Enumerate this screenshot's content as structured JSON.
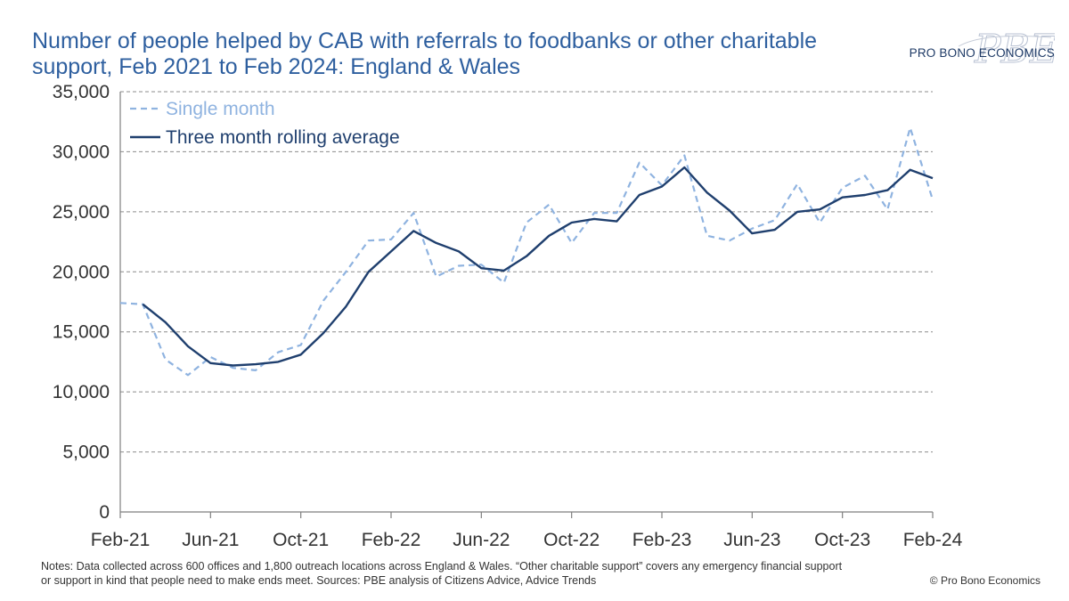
{
  "title": "Number of people helped by CAB with referrals to foodbanks or other charitable support, Feb 2021 to Feb 2024: England & Wales",
  "logo": {
    "text": "PRO BONO ECONOMICS",
    "mark": "PBE"
  },
  "notes": "Notes: Data collected across 600 offices and 1,800 outreach locations across England & Wales. “Other charitable support” covers any emergency financial support or support in kind that people need to make ends meet. Sources: PBE analysis of Citizens Advice, Advice Trends",
  "copyright": "© Pro Bono Economics",
  "colors": {
    "title": "#2e5f9f",
    "single": "#8fb3e0",
    "rolling": "#1f3f6e",
    "grid": "#8c8c8c",
    "axis": "#7f7f7f"
  },
  "chart_data": {
    "type": "line",
    "title": "Number of people helped by CAB with referrals to foodbanks or other charitable support, Feb 2021 to Feb 2024: England & Wales",
    "xlabel": "",
    "ylabel": "",
    "ylim": [
      0,
      35000
    ],
    "yticks": [
      0,
      5000,
      10000,
      15000,
      20000,
      25000,
      30000,
      35000
    ],
    "ytick_labels": [
      "0",
      "5,000",
      "10,000",
      "15,000",
      "20,000",
      "25,000",
      "30,000",
      "35,000"
    ],
    "grid": "horizontal dashed",
    "legend_position": "top-left",
    "x": [
      "Feb-21",
      "Mar-21",
      "Apr-21",
      "May-21",
      "Jun-21",
      "Jul-21",
      "Aug-21",
      "Sep-21",
      "Oct-21",
      "Nov-21",
      "Dec-21",
      "Jan-22",
      "Feb-22",
      "Mar-22",
      "Apr-22",
      "May-22",
      "Jun-22",
      "Jul-22",
      "Aug-22",
      "Sep-22",
      "Oct-22",
      "Nov-22",
      "Dec-22",
      "Jan-23",
      "Feb-23",
      "Mar-23",
      "Apr-23",
      "May-23",
      "Jun-23",
      "Jul-23",
      "Aug-23",
      "Sep-23",
      "Oct-23",
      "Nov-23",
      "Dec-23",
      "Jan-24",
      "Feb-24"
    ],
    "xtick_labels": [
      "Feb-21",
      "Jun-21",
      "Oct-21",
      "Feb-22",
      "Jun-22",
      "Oct-22",
      "Feb-23",
      "Jun-23",
      "Oct-23",
      "Feb-24"
    ],
    "series": [
      {
        "name": "Single month",
        "style": "dashed",
        "values": [
          17400,
          17300,
          12700,
          11400,
          12900,
          12000,
          11800,
          13300,
          13900,
          17600,
          20000,
          22600,
          22700,
          24900,
          19600,
          20500,
          20600,
          19100,
          24100,
          25600,
          22400,
          24900,
          24900,
          29100,
          27200,
          29700,
          23000,
          22600,
          23600,
          24300,
          27300,
          24100,
          27000,
          28000,
          25200,
          32000,
          26000
        ]
      },
      {
        "name": "Three month rolling average",
        "style": "solid",
        "values": [
          null,
          17300,
          15800,
          13800,
          12400,
          12200,
          12300,
          12500,
          13100,
          14900,
          17100,
          20000,
          21700,
          23400,
          22400,
          21700,
          20300,
          20100,
          21300,
          23000,
          24100,
          24400,
          24200,
          26400,
          27100,
          28700,
          26600,
          25100,
          23200,
          23500,
          25000,
          25200,
          26200,
          26400,
          26800,
          28500,
          27800
        ]
      }
    ]
  }
}
